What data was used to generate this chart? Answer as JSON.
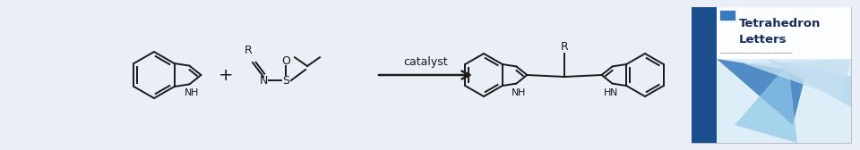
{
  "background_color": "#eaeff7",
  "figsize": [
    9.6,
    1.68
  ],
  "dpi": 100,
  "reaction_label": "catalyst",
  "journal_title_line1": "Tetrahedron",
  "journal_title_line2": "Letters",
  "journal_dark_blue": "#1a4e8c",
  "journal_mid_blue": "#3a7bbf",
  "journal_light_blue": "#b8d8ee",
  "journal_pale": "#ddeef8",
  "text_color": "#1a1a1a"
}
